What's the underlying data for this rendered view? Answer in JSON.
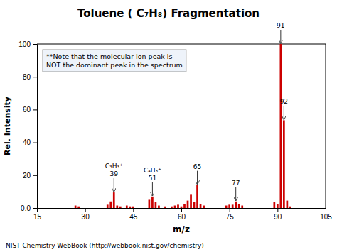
{
  "chart_data": {
    "type": "bar",
    "title": "Toluene ( C₇H₈) Fragmentation",
    "x_label": "m/z",
    "y_label": "Rel. Intensity",
    "x": [
      27,
      28,
      37,
      38,
      39,
      40,
      41,
      43,
      44,
      45,
      50,
      51,
      52,
      53,
      55,
      57,
      58,
      59,
      60,
      61,
      62,
      63,
      64,
      65,
      66,
      67,
      74,
      75,
      76,
      77,
      78,
      79,
      89,
      90,
      91,
      92,
      93,
      94
    ],
    "values": [
      1.5,
      1.0,
      2.0,
      4.0,
      9.5,
      1.5,
      1.0,
      1.5,
      1.0,
      1.0,
      5.0,
      7.0,
      3.5,
      1.5,
      1.0,
      1.0,
      1.5,
      2.0,
      1.0,
      2.5,
      4.5,
      8.5,
      3.5,
      14.0,
      2.5,
      1.5,
      1.5,
      2.0,
      2.0,
      4.0,
      2.5,
      1.5,
      3.5,
      2.5,
      100.0,
      53.5,
      4.5,
      1.0
    ],
    "color": "#cc0000",
    "xlim": [
      15,
      105
    ],
    "xticks": [
      15,
      30,
      45,
      60,
      75,
      90,
      105
    ],
    "ylim": [
      0,
      100
    ],
    "yticks": [
      {
        "value": 0,
        "label": "0.0"
      },
      20,
      40,
      60,
      80,
      100
    ],
    "grid": false,
    "annotations": [
      {
        "x": 39,
        "text": "39"
      },
      {
        "x": 39,
        "text": "C₃H₃⁺"
      },
      {
        "x": 51,
        "text": "51"
      },
      {
        "x": 51,
        "text": "C₄H₃⁺"
      },
      {
        "x": 65,
        "text": "65"
      },
      {
        "x": 77,
        "text": "77"
      },
      {
        "x": 91,
        "text": "91"
      },
      {
        "x": 92,
        "text": "92"
      }
    ],
    "note": "**Note that the molecular ion peak is\nNOT the dominant peak in the spectrum",
    "footer": "NIST Chemistry WebBook (http://webbook.nist.gov/chemistry)"
  }
}
